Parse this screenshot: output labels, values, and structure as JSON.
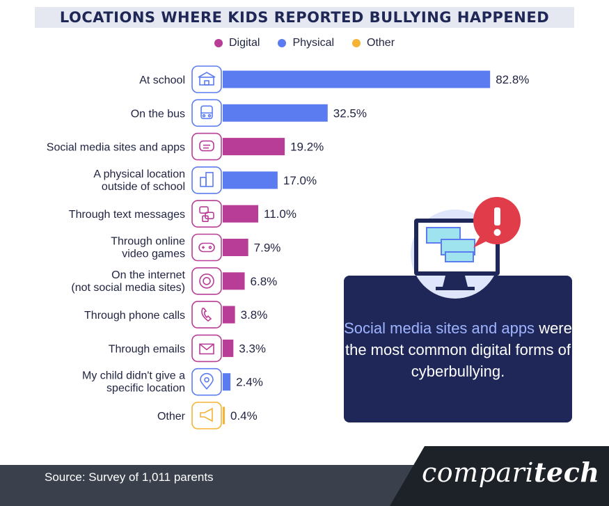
{
  "title": "LOCATIONS WHERE KIDS REPORTED BULLYING HAPPENED",
  "legend": [
    {
      "label": "Digital",
      "color": "#b83d96"
    },
    {
      "label": "Physical",
      "color": "#5b7cf0"
    },
    {
      "label": "Other",
      "color": "#f5b335"
    }
  ],
  "chart_data": {
    "type": "bar",
    "orientation": "horizontal",
    "title": "LOCATIONS WHERE KIDS REPORTED BULLYING HAPPENED",
    "unit": "%",
    "xlim": [
      0,
      100
    ],
    "grid": false,
    "legend_position": "top",
    "categories": [
      [
        "At school"
      ],
      [
        "On the bus"
      ],
      [
        "Social media sites and apps"
      ],
      [
        "A physical location",
        "outside of school"
      ],
      [
        "Through text messages"
      ],
      [
        "Through online",
        "video games"
      ],
      [
        "On the internet",
        "(not social media sites)"
      ],
      [
        "Through phone calls"
      ],
      [
        "Through emails"
      ],
      [
        "My child didn't give a",
        "specific location"
      ],
      [
        "Other"
      ]
    ],
    "values": [
      82.8,
      32.5,
      19.2,
      17.0,
      11.0,
      7.9,
      6.8,
      3.8,
      3.3,
      2.4,
      0.4
    ],
    "value_labels": [
      "82.8%",
      "32.5%",
      "19.2%",
      "17.0%",
      "11.0%",
      "7.9%",
      "6.8%",
      "3.8%",
      "3.3%",
      "2.4%",
      "0.4%"
    ],
    "groups": [
      "Physical",
      "Physical",
      "Digital",
      "Physical",
      "Digital",
      "Digital",
      "Digital",
      "Digital",
      "Digital",
      "Physical",
      "Other"
    ],
    "icons": [
      "school-icon",
      "bus-icon",
      "chat-bubble-icon",
      "buildings-icon",
      "text-messages-icon",
      "gamepad-icon",
      "globe-icon",
      "phone-icon",
      "envelope-icon",
      "location-pin-icon",
      "megaphone-icon"
    ]
  },
  "callout": {
    "highlight": "Social media sites and apps",
    "text": "were the most common digital forms of cyberbullying."
  },
  "footer": {
    "source": "Source: Survey of 1,011 parents",
    "brand_regular": "compari",
    "brand_bold": "tech"
  }
}
